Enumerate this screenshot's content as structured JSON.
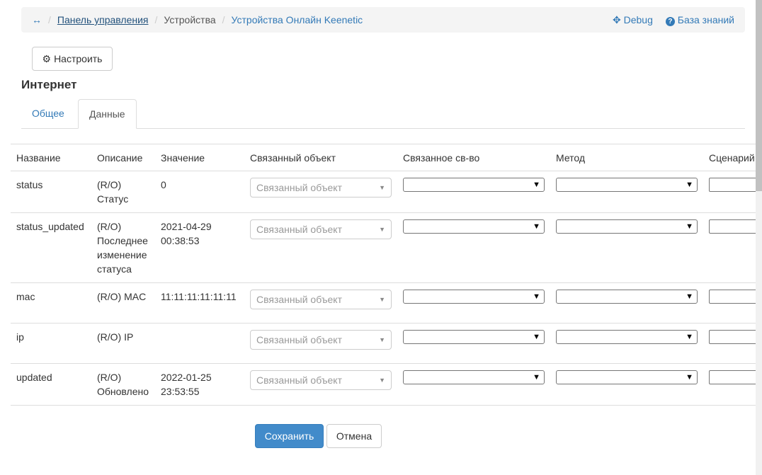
{
  "breadcrumb": {
    "home_icon": "arrows-h-icon",
    "items": [
      "Панель управления",
      "Устройства",
      "Устройства Онлайн Keenetic"
    ],
    "debug": "Debug",
    "help": "База знаний"
  },
  "configure_label": "Настроить",
  "title": "Интернет",
  "tabs": [
    "Общее",
    "Данные"
  ],
  "table": {
    "headers": [
      "Название",
      "Описание",
      "Значение",
      "Связанный объект",
      "Связанное св-во",
      "Метод",
      "Сценарий"
    ],
    "linked_placeholder": "Связанный объект",
    "rows": [
      {
        "name": "status",
        "desc": "(R/O) Статус",
        "value": "0"
      },
      {
        "name": "status_updated",
        "desc": "(R/O) Последнее изменение статуса",
        "value": "2021-04-29 00:38:53"
      },
      {
        "name": "mac",
        "desc": "(R/O) MAC",
        "value": "11:11:11:11:11:11"
      },
      {
        "name": "ip",
        "desc": "(R/O) IP",
        "value": ""
      },
      {
        "name": "updated",
        "desc": "(R/O) Обновлено",
        "value": "2022-01-25 23:53:55"
      }
    ]
  },
  "save_label": "Сохранить",
  "cancel_label": "Отмена",
  "colors": {
    "link": "#337ab7",
    "debug": "#d9534f",
    "primary": "#428bca"
  }
}
